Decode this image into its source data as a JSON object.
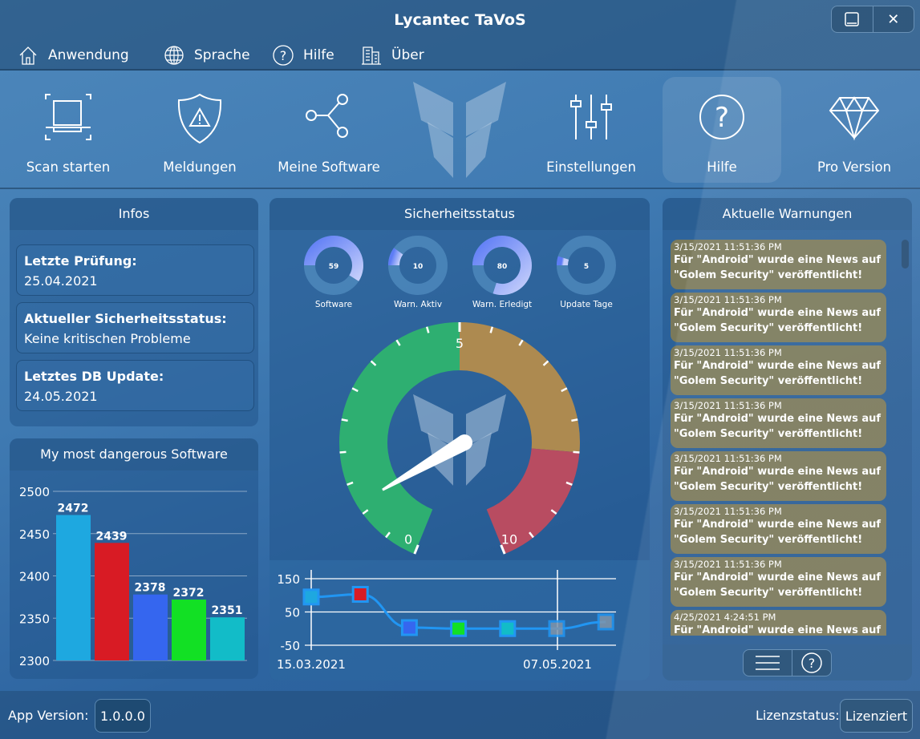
{
  "window": {
    "title": "Lycantec TaVoS",
    "minimize_icon": "minimize-icon",
    "close_icon": "close-icon"
  },
  "menu": [
    {
      "label": "Anwendung",
      "icon": "home-icon"
    },
    {
      "label": "Sprache",
      "icon": "globe-icon"
    },
    {
      "label": "Hilfe",
      "icon": "help-icon"
    },
    {
      "label": "Über",
      "icon": "building-icon"
    }
  ],
  "toolbar": [
    {
      "label": "Scan starten",
      "icon": "scan-icon"
    },
    {
      "label": "Meldungen",
      "icon": "shield-warning-icon"
    },
    {
      "label": "Meine Software",
      "icon": "share-icon"
    },
    {
      "label": "Einstellungen",
      "icon": "sliders-icon"
    },
    {
      "label": "Hilfe",
      "icon": "help-icon",
      "selected": true
    },
    {
      "label": "Pro Version",
      "icon": "diamond-icon"
    }
  ],
  "infos": {
    "title": "Infos",
    "items": [
      {
        "label": "Letzte Prüfung:",
        "value": "25.04.2021"
      },
      {
        "label": "Aktueller Sicherheitsstatus:",
        "value": "Keine kritischen Probleme"
      },
      {
        "label": "Letztes DB Update:",
        "value": "24.05.2021"
      }
    ]
  },
  "security": {
    "title": "Sicherheitsstatus",
    "donuts": [
      {
        "label": "Software",
        "value": 59,
        "text": "59"
      },
      {
        "label": "Warn. Aktiv",
        "value": 10,
        "text": "10"
      },
      {
        "label": "Warn. Erledigt",
        "value": 80,
        "text": "80"
      },
      {
        "label": "Update Tage",
        "value": 5,
        "text": "5"
      }
    ],
    "gauge": {
      "min": 0,
      "max": 10,
      "value": 1.2,
      "labels": [
        "0",
        "5",
        "10"
      ],
      "bands": [
        {
          "from": 0,
          "to": 5,
          "color": "#2eb36f"
        },
        {
          "from": 5,
          "to": 8,
          "color": "#b48c4c"
        },
        {
          "from": 8,
          "to": 10,
          "color": "#c04b5e"
        }
      ]
    }
  },
  "chart_data": [
    {
      "type": "bar",
      "title": "My most dangerous Software",
      "values": [
        2472,
        2439,
        2378,
        2372,
        2351
      ],
      "labels": [
        "2472",
        "2439",
        "2378",
        "2372",
        "2351"
      ],
      "colors": [
        "#1ea8e0",
        "#d81b24",
        "#3566ef",
        "#12e024",
        "#12bcc8"
      ],
      "ylim": [
        2300,
        2500
      ],
      "yticks": [
        "2300",
        "2350",
        "2400",
        "2450",
        "2500"
      ],
      "grid": true
    },
    {
      "type": "line",
      "x_labels": [
        "15.03.2021",
        "07.05.2021"
      ],
      "values": [
        95,
        103,
        3,
        0,
        0,
        0,
        20
      ],
      "marker_colors": [
        "#1ea8e0",
        "#d81b24",
        "#3566ef",
        "#12e024",
        "#12bcc8",
        "#7f96ad",
        "#7f96ad"
      ],
      "ylim": [
        -50,
        150
      ],
      "yticks": [
        "150",
        "50",
        "-50"
      ],
      "grid": true
    }
  ],
  "warnings": {
    "title": "Aktuelle Warnungen",
    "items": [
      {
        "time": "3/15/2021 11:51:36 PM",
        "msg": "Für \"Android\" wurde eine News auf \"Golem Security\" veröffentlicht!"
      },
      {
        "time": "3/15/2021 11:51:36 PM",
        "msg": "Für \"Android\" wurde eine News auf \"Golem Security\" veröffentlicht!"
      },
      {
        "time": "3/15/2021 11:51:36 PM",
        "msg": "Für \"Android\" wurde eine News auf \"Golem Security\" veröffentlicht!"
      },
      {
        "time": "3/15/2021 11:51:36 PM",
        "msg": "Für \"Android\" wurde eine News auf \"Golem Security\" veröffentlicht!"
      },
      {
        "time": "3/15/2021 11:51:36 PM",
        "msg": "Für \"Android\" wurde eine News auf \"Golem Security\" veröffentlicht!"
      },
      {
        "time": "3/15/2021 11:51:36 PM",
        "msg": "Für \"Android\" wurde eine News auf \"Golem Security\" veröffentlicht!"
      },
      {
        "time": "3/15/2021 11:51:36 PM",
        "msg": "Für \"Android\" wurde eine News auf \"Golem Security\" veröffentlicht!"
      },
      {
        "time": "4/25/2021 4:24:51 PM",
        "msg": "Für \"Android\" wurde eine News auf \"Golem Security\" veröffentlicht!"
      }
    ]
  },
  "footer": {
    "version_label": "App Version:",
    "version": "1.0.0.0",
    "license_label": "Lizenzstatus:",
    "license": "Lizenziert"
  }
}
